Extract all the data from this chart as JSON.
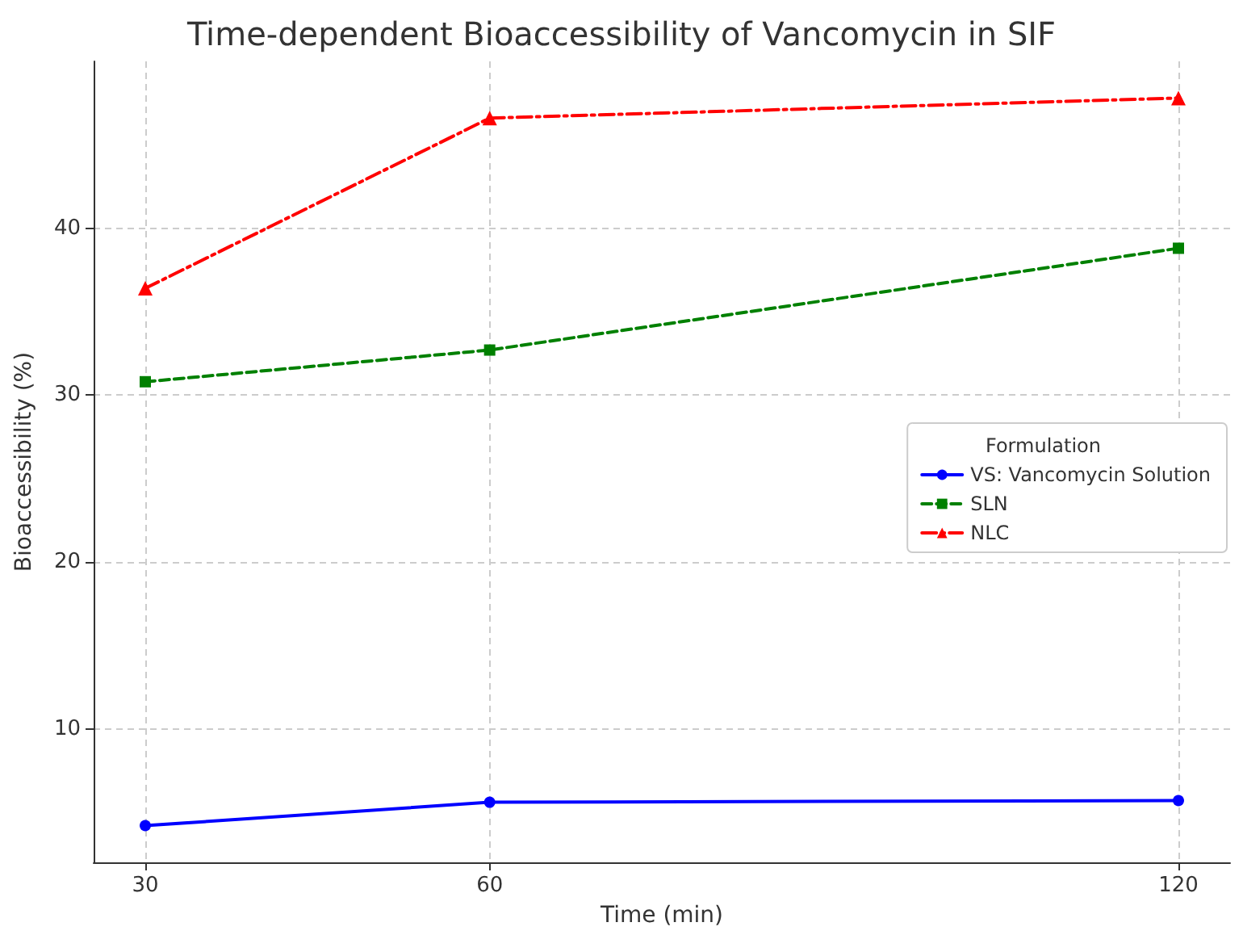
{
  "chart_data": {
    "type": "line",
    "title": "Time-dependent Bioaccessibility of Vancomycin in SIF",
    "xlabel": "Time (min)",
    "ylabel": "Bioaccessibility (%)",
    "legend_title": "Formulation",
    "x": [
      30,
      60,
      120
    ],
    "xlim": [
      25.5,
      124.5
    ],
    "xticks": [
      30,
      60,
      120
    ],
    "ylim": [
      2,
      50
    ],
    "yticks": [
      10,
      20,
      30,
      40
    ],
    "grid": true,
    "legend": "right",
    "series": [
      {
        "name": "VS: Vancomycin Solution",
        "color": "#0000ff",
        "values": [
          4.2,
          5.6,
          5.7
        ],
        "marker": "circle",
        "line_style": "solid"
      },
      {
        "name": "SLN",
        "color": "#008000",
        "values": [
          30.8,
          32.7,
          38.8
        ],
        "marker": "square",
        "line_style": "dashed"
      },
      {
        "name": "NLC",
        "color": "#ff0000",
        "values": [
          36.4,
          46.6,
          47.8
        ],
        "marker": "triangle",
        "line_style": "dashdot"
      }
    ]
  }
}
